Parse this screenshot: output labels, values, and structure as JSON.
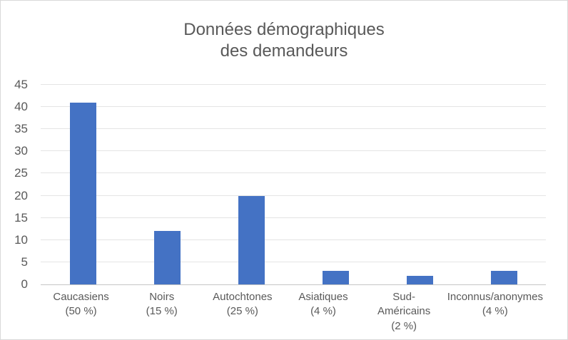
{
  "chart_data": {
    "type": "bar",
    "title": "Données démographiques des demandeurs",
    "categories": [
      "Caucasiens",
      "Noirs",
      "Autochtones",
      "Asiatiques",
      "Sud-Américains",
      "Inconnus/anonymes"
    ],
    "category_sublabels": [
      "(50 %)",
      "(15 %)",
      "(25 %)",
      "(4 %)",
      "(2 %)",
      "(4 %)"
    ],
    "values": [
      41,
      12,
      20,
      3,
      2,
      3
    ],
    "xlabel": "",
    "ylabel": "",
    "ylim": [
      0,
      45
    ],
    "ytick_step": 5,
    "yticks": [
      0,
      5,
      10,
      15,
      20,
      25,
      30,
      35,
      40,
      45
    ],
    "grid": true,
    "legend": false,
    "colors": {
      "bar": "#4472c4",
      "gridline": "#e4e4e4",
      "axis_line": "#c6c6c6",
      "text": "#595959",
      "frame_border": "#d9d9d9",
      "background": "#ffffff"
    }
  }
}
